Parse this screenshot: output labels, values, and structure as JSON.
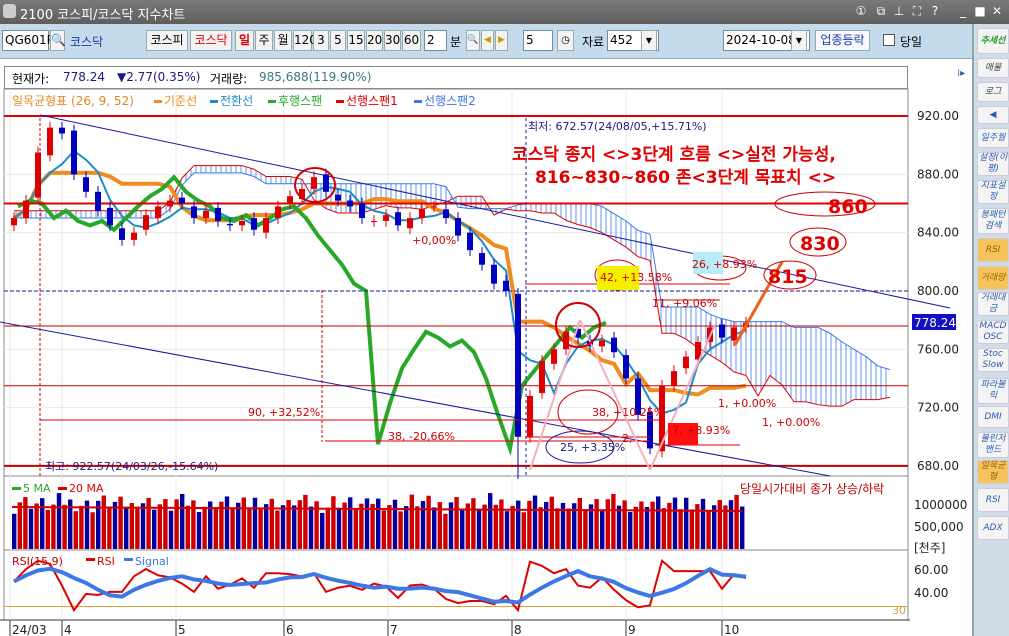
{
  "window": {
    "title": "2100 코스피/코스닥 지수차트",
    "icons": [
      "screen-1-icon",
      "copy-window-icon",
      "pin-icon",
      "fullscreen-icon",
      "help-icon",
      "minimize-icon",
      "maximize-icon",
      "close-icon"
    ],
    "icon_glyphs": [
      "①",
      "⧉",
      "⊥",
      "⛶",
      "?",
      "_",
      "■",
      "✕"
    ]
  },
  "toolbar": {
    "code": "QG601P",
    "name": "코스닥",
    "market_buttons": [
      "코스피",
      "코스닥"
    ],
    "period_buttons": [
      "일",
      "주",
      "월",
      "120",
      "3",
      "5",
      "15",
      "20",
      "30",
      "60"
    ],
    "minute_value": "2",
    "minute_label": "분",
    "step_value": "5",
    "data_label": "자료",
    "data_count": "452",
    "date": "2024-10-08",
    "sector_button": "업종등락",
    "today_label": "당일",
    "today_checked": false
  },
  "info": {
    "price_label": "현재가:",
    "price": "778.24",
    "change": "▼2.77(0.35%)",
    "volume_label": "거래량:",
    "volume": "985,688(119.90%)"
  },
  "legend": {
    "ichimoku": "일목균형표 (26, 9, 52)",
    "items": [
      {
        "label": "기준선",
        "color": "#f08c1e"
      },
      {
        "label": "전환선",
        "color": "#1e8cc8"
      },
      {
        "label": "후행스팬",
        "color": "#28a828"
      },
      {
        "label": "선행스팬1",
        "color": "#e00000"
      },
      {
        "label": "선행스팬2",
        "color": "#3c78e6"
      }
    ]
  },
  "annotations": {
    "headline1": "코스닥 종지 <>3단계 흐름 <>실전 가능성,",
    "headline2": "816~830~860 존<3단계 목표치 <>",
    "target_860": "860",
    "target_830": "830",
    "target_815": "815",
    "low": "최저: 672.57(24/08/05,+15.71%)",
    "high": "최고: 922.57(24/03/26,-15.64%)",
    "m1": "90, +32,52%",
    "m2": "38, -20,66%",
    "m3": "38, +10.25%",
    "m4": "25, +3.35%",
    "m5": "42, +13.58%",
    "m6": "26, +8.93%",
    "m7": "11, +9.06%",
    "m8": "7, +8.93%",
    "m9": "1, +0.00%",
    "m10": "1, +0.00%",
    "m11": "+0,00%",
    "m12": "2,"
  },
  "price_axis": [
    "920.00",
    "880.00",
    "840.00",
    "800.00",
    "760.00",
    "720.00",
    "680.00"
  ],
  "current_price_tag": "778.24",
  "volume": {
    "legend": [
      {
        "label": "5 MA",
        "color": "#28a828"
      },
      {
        "label": "20 MA",
        "color": "#e00000"
      }
    ],
    "note": "당일시가대비 종가 상승/하락",
    "axis": [
      "1000000",
      "500,000"
    ],
    "unit": "[천주]"
  },
  "rsi": {
    "legend": "RSI(15,9)",
    "series": [
      {
        "label": "RSI",
        "color": "#e00000"
      },
      {
        "label": "Signal",
        "color": "#3c78e6"
      }
    ],
    "axis": [
      "60.00",
      "40.00"
    ],
    "baseline": "30"
  },
  "date_axis": [
    "24/03",
    "4",
    "5",
    "6",
    "7",
    "8",
    "9",
    "10"
  ],
  "sidebar": [
    "추세선",
    "매물",
    "로그",
    "◀",
    "일주월",
    "설정(이평)",
    "지표설정",
    "봉패턴검색",
    "RSI",
    "거래량",
    "거래대금",
    "MACD OSC",
    "Stoc Slow",
    "파라볼릭",
    "DMI",
    "볼린저밴드",
    "일목균형",
    "RSI",
    "ADX"
  ],
  "sidebar_active": [
    8,
    9,
    16
  ],
  "chart_data": {
    "type": "candlestick",
    "ylim": [
      672,
      930
    ],
    "closes": [
      850,
      862,
      895,
      912,
      908,
      880,
      868,
      855,
      845,
      835,
      840,
      852,
      858,
      862,
      860,
      850,
      855,
      848,
      845,
      848,
      842,
      850,
      858,
      865,
      870,
      878,
      868,
      862,
      858,
      850,
      848,
      852,
      845,
      850,
      856,
      858,
      850,
      838,
      828,
      818,
      805,
      800,
      700,
      728,
      752,
      760,
      772,
      768,
      762,
      766,
      758,
      740,
      715,
      692,
      735,
      745,
      755,
      765,
      775,
      768,
      775,
      778.24
    ],
    "last": 778.24,
    "hlines": [
      920,
      860,
      800,
      776,
      735,
      680
    ],
    "colors": {
      "up": "#e00000",
      "down": "#0000c0"
    }
  }
}
